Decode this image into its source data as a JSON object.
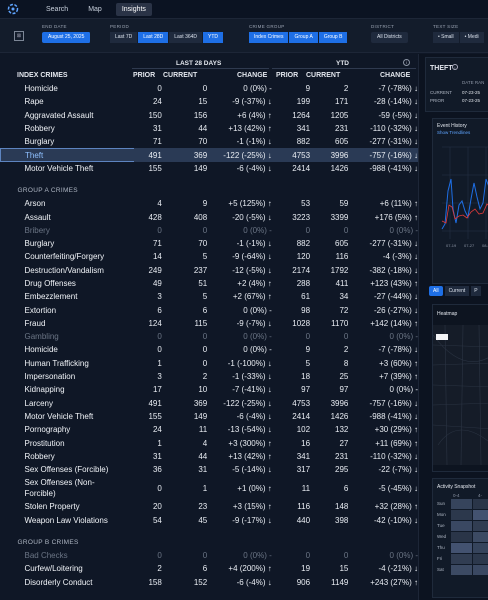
{
  "nav": {
    "items": [
      "Search",
      "Map",
      "Insights"
    ],
    "active": 2
  },
  "filters": {
    "end_date_label": "END DATE",
    "end_date": "August 25, 2025",
    "period_label": "PERIOD",
    "periods": [
      "Last 7D",
      "Last 28D",
      "Last 364D",
      "YTD"
    ],
    "period_active": 1,
    "crime_group_label": "CRIME GROUP",
    "crime_groups": [
      "Index Crimes",
      "Group A",
      "Group B"
    ],
    "district_label": "DISTRICT",
    "district": "All Districts",
    "text_size_label": "TEXT SIZE",
    "text_sizes": [
      "Small",
      "Medi"
    ]
  },
  "table": {
    "period_header": "LAST 28 DAYS",
    "ytd_header": "YTD",
    "columns": {
      "name": "INDEX CRIMES",
      "prior": "PRIOR",
      "current": "CURRENT",
      "change": "CHANGE",
      "ytd_prior": "PRIOR",
      "ytd_current": "CURRENT",
      "ytd_change": "CHANGE"
    },
    "rows": [
      {
        "type": "row",
        "name": "Homicide",
        "p": "0",
        "c": "0",
        "ch": "0 (0%) -",
        "yp": "9",
        "yc": "2",
        "ych": "-7 (-78%) ↓"
      },
      {
        "type": "row",
        "name": "Rape",
        "p": "24",
        "c": "15",
        "ch": "-9 (-37%) ↓",
        "yp": "199",
        "yc": "171",
        "ych": "-28 (-14%) ↓"
      },
      {
        "type": "row",
        "name": "Aggravated Assault",
        "p": "150",
        "c": "156",
        "ch": "+6 (4%) ↑",
        "yp": "1264",
        "yc": "1205",
        "ych": "-59 (-5%) ↓"
      },
      {
        "type": "row",
        "name": "Robbery",
        "p": "31",
        "c": "44",
        "ch": "+13 (42%) ↑",
        "yp": "341",
        "yc": "231",
        "ych": "-110 (-32%) ↓"
      },
      {
        "type": "row",
        "name": "Burglary",
        "p": "71",
        "c": "70",
        "ch": "-1 (-1%) ↓",
        "yp": "882",
        "yc": "605",
        "ych": "-277 (-31%) ↓"
      },
      {
        "type": "row",
        "name": "Theft",
        "p": "491",
        "c": "369",
        "ch": "-122 (-25%) ↓",
        "yp": "4753",
        "yc": "3996",
        "ych": "-757 (-16%) ↓",
        "hl": true
      },
      {
        "type": "row",
        "name": "Motor Vehicle Theft",
        "p": "155",
        "c": "149",
        "ch": "-6 (-4%) ↓",
        "yp": "2414",
        "yc": "1426",
        "ych": "-988 (-41%) ↓"
      },
      {
        "type": "sec",
        "name": "GROUP A CRIMES"
      },
      {
        "type": "row",
        "name": "Arson",
        "p": "4",
        "c": "9",
        "ch": "+5 (125%) ↑",
        "yp": "53",
        "yc": "59",
        "ych": "+6 (11%) ↑"
      },
      {
        "type": "row",
        "name": "Assault",
        "p": "428",
        "c": "408",
        "ch": "-20 (-5%) ↓",
        "yp": "3223",
        "yc": "3399",
        "ych": "+176 (5%) ↑"
      },
      {
        "type": "row",
        "name": "Bribery",
        "p": "0",
        "c": "0",
        "ch": "0 (0%) -",
        "yp": "0",
        "yc": "0",
        "ych": "0 (0%) -",
        "dim": true
      },
      {
        "type": "row",
        "name": "Burglary",
        "p": "71",
        "c": "70",
        "ch": "-1 (-1%) ↓",
        "yp": "882",
        "yc": "605",
        "ych": "-277 (-31%) ↓"
      },
      {
        "type": "row",
        "name": "Counterfeiting/Forgery",
        "p": "14",
        "c": "5",
        "ch": "-9 (-64%) ↓",
        "yp": "120",
        "yc": "116",
        "ych": "-4 (-3%) ↓"
      },
      {
        "type": "row",
        "name": "Destruction/Vandalism",
        "p": "249",
        "c": "237",
        "ch": "-12 (-5%) ↓",
        "yp": "2174",
        "yc": "1792",
        "ych": "-382 (-18%) ↓"
      },
      {
        "type": "row",
        "name": "Drug Offenses",
        "p": "49",
        "c": "51",
        "ch": "+2 (4%) ↑",
        "yp": "288",
        "yc": "411",
        "ych": "+123 (43%) ↑"
      },
      {
        "type": "row",
        "name": "Embezzlement",
        "p": "3",
        "c": "5",
        "ch": "+2 (67%) ↑",
        "yp": "61",
        "yc": "34",
        "ych": "-27 (-44%) ↓"
      },
      {
        "type": "row",
        "name": "Extortion",
        "p": "6",
        "c": "6",
        "ch": "0 (0%) -",
        "yp": "98",
        "yc": "72",
        "ych": "-26 (-27%) ↓"
      },
      {
        "type": "row",
        "name": "Fraud",
        "p": "124",
        "c": "115",
        "ch": "-9 (-7%) ↓",
        "yp": "1028",
        "yc": "1170",
        "ych": "+142 (14%) ↑"
      },
      {
        "type": "row",
        "name": "Gambling",
        "p": "0",
        "c": "0",
        "ch": "0 (0%) -",
        "yp": "0",
        "yc": "0",
        "ych": "0 (0%) -",
        "dim": true
      },
      {
        "type": "row",
        "name": "Homicide",
        "p": "0",
        "c": "0",
        "ch": "0 (0%) -",
        "yp": "9",
        "yc": "2",
        "ych": "-7 (-78%) ↓"
      },
      {
        "type": "row",
        "name": "Human Trafficking",
        "p": "1",
        "c": "0",
        "ch": "-1 (-100%) ↓",
        "yp": "5",
        "yc": "8",
        "ych": "+3 (60%) ↑"
      },
      {
        "type": "row",
        "name": "Impersonation",
        "p": "3",
        "c": "2",
        "ch": "-1 (-33%) ↓",
        "yp": "18",
        "yc": "25",
        "ych": "+7 (39%) ↑"
      },
      {
        "type": "row",
        "name": "Kidnapping",
        "p": "17",
        "c": "10",
        "ch": "-7 (-41%) ↓",
        "yp": "97",
        "yc": "97",
        "ych": "0 (0%) -"
      },
      {
        "type": "row",
        "name": "Larceny",
        "p": "491",
        "c": "369",
        "ch": "-122 (-25%) ↓",
        "yp": "4753",
        "yc": "3996",
        "ych": "-757 (-16%) ↓"
      },
      {
        "type": "row",
        "name": "Motor Vehicle Theft",
        "p": "155",
        "c": "149",
        "ch": "-6 (-4%) ↓",
        "yp": "2414",
        "yc": "1426",
        "ych": "-988 (-41%) ↓"
      },
      {
        "type": "row",
        "name": "Pornography",
        "p": "24",
        "c": "11",
        "ch": "-13 (-54%) ↓",
        "yp": "102",
        "yc": "132",
        "ych": "+30 (29%) ↑"
      },
      {
        "type": "row",
        "name": "Prostitution",
        "p": "1",
        "c": "4",
        "ch": "+3 (300%) ↑",
        "yp": "16",
        "yc": "27",
        "ych": "+11 (69%) ↑"
      },
      {
        "type": "row",
        "name": "Robbery",
        "p": "31",
        "c": "44",
        "ch": "+13 (42%) ↑",
        "yp": "341",
        "yc": "231",
        "ych": "-110 (-32%) ↓"
      },
      {
        "type": "row",
        "name": "Sex Offenses (Forcible)",
        "p": "36",
        "c": "31",
        "ch": "-5 (-14%) ↓",
        "yp": "317",
        "yc": "295",
        "ych": "-22 (-7%) ↓"
      },
      {
        "type": "row2",
        "name1": "Sex Offenses (Non-",
        "name2": "Forcible)",
        "p": "0",
        "c": "1",
        "ch": "+1 (0%) ↑",
        "yp": "11",
        "yc": "6",
        "ych": "-5 (-45%) ↓"
      },
      {
        "type": "row",
        "name": "Stolen Property",
        "p": "20",
        "c": "23",
        "ch": "+3 (15%) ↑",
        "yp": "116",
        "yc": "148",
        "ych": "+32 (28%) ↑"
      },
      {
        "type": "row",
        "name": "Weapon Law Violations",
        "p": "54",
        "c": "45",
        "ch": "-9 (-17%) ↓",
        "yp": "440",
        "yc": "398",
        "ych": "-42 (-10%) ↓"
      },
      {
        "type": "sec",
        "name": "GROUP B CRIMES"
      },
      {
        "type": "row",
        "name": "Bad Checks",
        "p": "0",
        "c": "0",
        "ch": "0 (0%) -",
        "yp": "0",
        "yc": "0",
        "ych": "0 (0%) -",
        "dim": true
      },
      {
        "type": "row",
        "name": "Curfew/Loitering",
        "p": "2",
        "c": "6",
        "ch": "+4 (200%) ↑",
        "yp": "19",
        "yc": "15",
        "ych": "-4 (-21%) ↓"
      },
      {
        "type": "row",
        "name": "Disorderly Conduct",
        "p": "158",
        "c": "152",
        "ch": "-6 (-4%) ↓",
        "yp": "906",
        "yc": "1149",
        "ych": "+243 (27%) ↑"
      }
    ]
  },
  "side": {
    "title": "THEFT",
    "date_range_label": "DATE RAN",
    "current_label": "CURRENT",
    "current_value": "07-23-25",
    "prior_label": "PRIOR",
    "prior_value": "07-23-25",
    "event_history_title": "Event History",
    "show_trendlines": "Show Trendlines",
    "event_x_ticks": [
      "07-19",
      "07-27",
      "08-04"
    ],
    "tabs": [
      "All",
      "Current",
      "P"
    ],
    "heatmap_title": "Heatmap",
    "activity_title": "Activity Snapshot",
    "activity_hours": [
      "0-4",
      "4-"
    ],
    "days": [
      "Sun",
      "Mon",
      "Tue",
      "Wed",
      "Thu",
      "Fri",
      "Sat"
    ]
  }
}
